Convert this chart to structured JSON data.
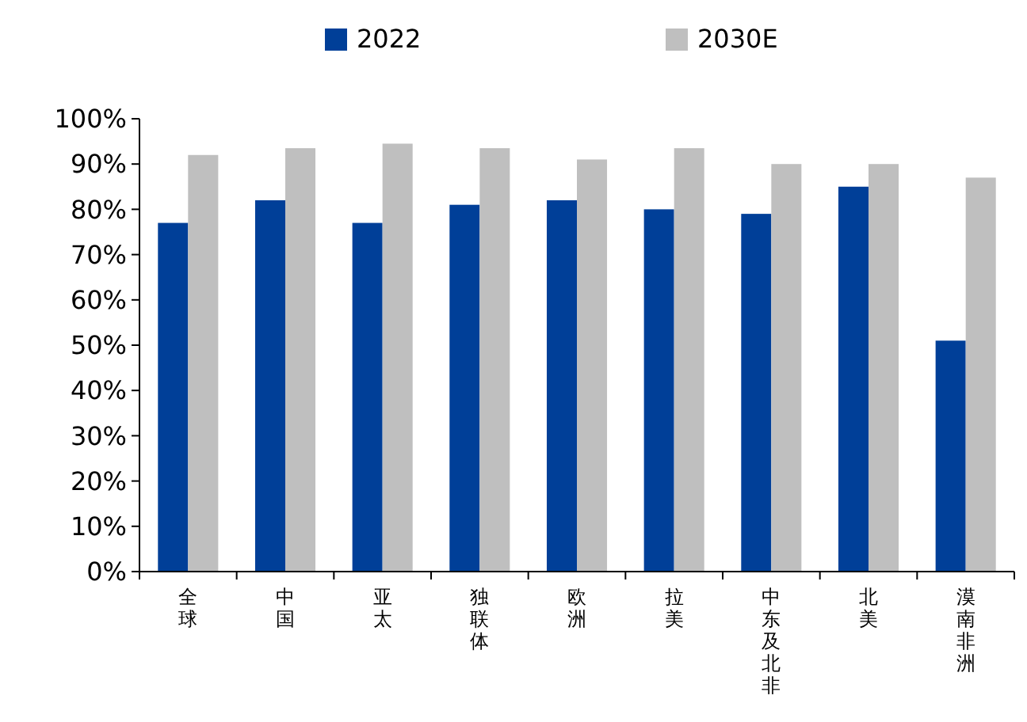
{
  "chart_data": {
    "type": "bar",
    "categories": [
      "全球",
      "中国",
      "亚太",
      "独联体",
      "欧洲",
      "拉美",
      "中东及北非",
      "北美",
      "漠南非洲"
    ],
    "series": [
      {
        "name": "2022",
        "color": "#003f98",
        "values": [
          77,
          82,
          77,
          81,
          82,
          80,
          79,
          85,
          51
        ]
      },
      {
        "name": "2030E",
        "color": "#bfbfbf",
        "values": [
          92,
          93.5,
          94.5,
          93.5,
          91,
          93.5,
          90,
          90,
          87
        ]
      }
    ],
    "ylim": [
      0,
      100
    ],
    "yticks": [
      {
        "value": 0,
        "label": "0%"
      },
      {
        "value": 10,
        "label": "10%"
      },
      {
        "value": 20,
        "label": "20%"
      },
      {
        "value": 30,
        "label": "30%"
      },
      {
        "value": 40,
        "label": "40%"
      },
      {
        "value": 50,
        "label": "50%"
      },
      {
        "value": 60,
        "label": "60%"
      },
      {
        "value": 70,
        "label": "70%"
      },
      {
        "value": 80,
        "label": "80%"
      },
      {
        "value": 90,
        "label": "90%"
      },
      {
        "value": 100,
        "label": "100%"
      }
    ],
    "grid": false,
    "legend": "top"
  }
}
